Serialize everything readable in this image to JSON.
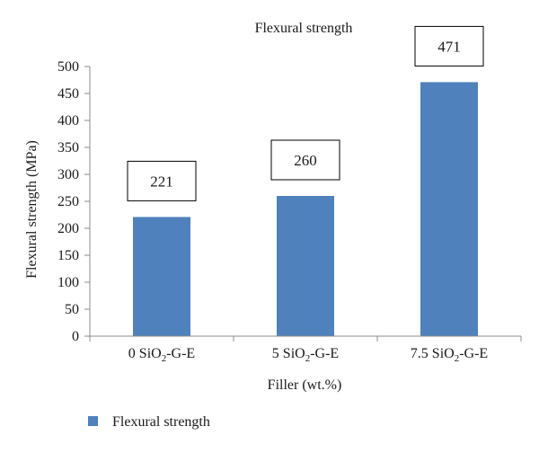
{
  "chart_data": {
    "type": "bar",
    "title": "Flexural strength",
    "xlabel": "Filler (wt.%)",
    "ylabel": "Flexural strength (MPa)",
    "ylim": [
      0,
      500
    ],
    "yticks": [
      0,
      50,
      100,
      150,
      200,
      250,
      300,
      350,
      400,
      450,
      500
    ],
    "categories": [
      {
        "prefix": "0 SiO",
        "sub": "2",
        "suffix": "-G-E"
      },
      {
        "prefix": "5 SiO",
        "sub": "2",
        "suffix": "-G-E"
      },
      {
        "prefix": "7.5 SiO",
        "sub": "2",
        "suffix": "-G-E"
      }
    ],
    "series": [
      {
        "name": "Flexural strength",
        "values": [
          221,
          260,
          471
        ],
        "color": "#4f81bd"
      }
    ],
    "data_labels": [
      "221",
      "260",
      "471"
    ],
    "legend": "bottom-left",
    "grid": false
  }
}
